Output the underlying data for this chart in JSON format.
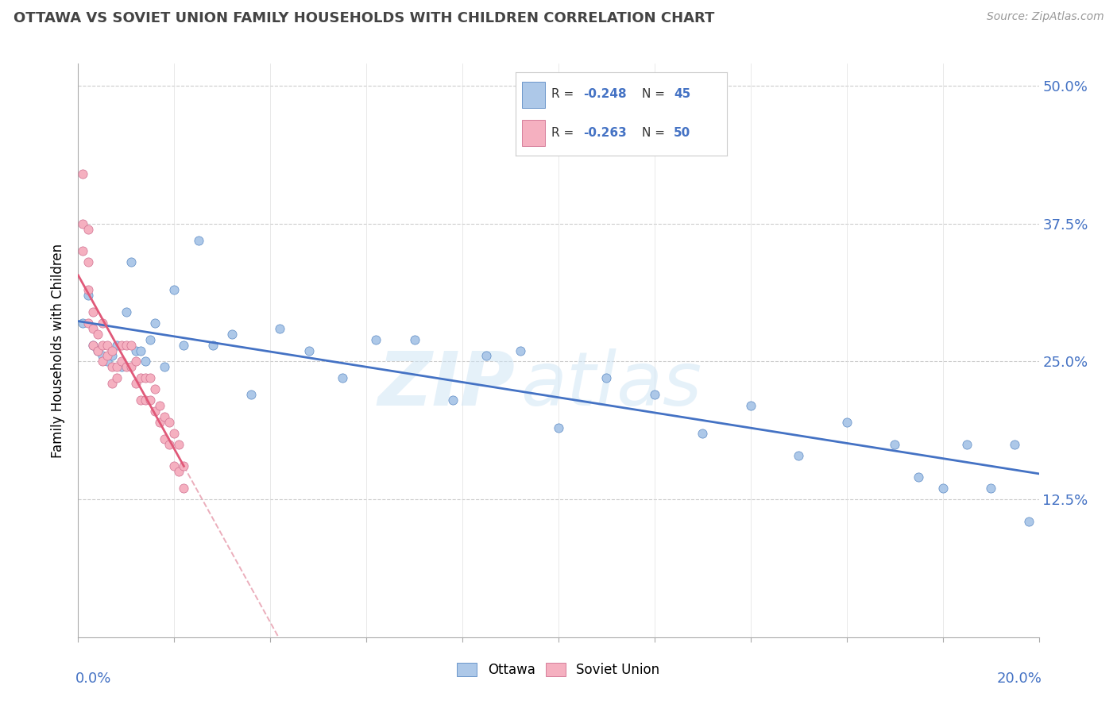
{
  "title": "OTTAWA VS SOVIET UNION FAMILY HOUSEHOLDS WITH CHILDREN CORRELATION CHART",
  "source": "Source: ZipAtlas.com",
  "ylabel": "Family Households with Children",
  "r_ottawa": -0.248,
  "n_ottawa": 45,
  "r_soviet": -0.263,
  "n_soviet": 50,
  "ottawa_dot_color": "#adc8e8",
  "ottawa_dot_edge": "#5b8ac4",
  "soviet_dot_color": "#f5b0c0",
  "soviet_dot_edge": "#d07090",
  "ottawa_line_color": "#4472c4",
  "soviet_line_color": "#e05878",
  "soviet_dash_color": "#e8a0b0",
  "grid_color": "#cccccc",
  "axis_label_color": "#4472c4",
  "title_color": "#444444",
  "source_color": "#999999",
  "background": "#ffffff",
  "xlim": [
    0.0,
    0.2
  ],
  "ylim": [
    0.0,
    0.52
  ],
  "yticks": [
    0.0,
    0.125,
    0.25,
    0.375,
    0.5
  ],
  "ytick_labels": [
    "",
    "12.5%",
    "25.0%",
    "37.5%",
    "50.0%"
  ],
  "ottawa_x": [
    0.001,
    0.002,
    0.003,
    0.004,
    0.005,
    0.006,
    0.007,
    0.008,
    0.009,
    0.01,
    0.011,
    0.012,
    0.013,
    0.014,
    0.015,
    0.016,
    0.018,
    0.02,
    0.022,
    0.025,
    0.028,
    0.032,
    0.036,
    0.042,
    0.048,
    0.055,
    0.062,
    0.07,
    0.078,
    0.085,
    0.092,
    0.1,
    0.11,
    0.12,
    0.13,
    0.14,
    0.15,
    0.16,
    0.17,
    0.175,
    0.18,
    0.185,
    0.19,
    0.195,
    0.198
  ],
  "ottawa_y": [
    0.285,
    0.31,
    0.265,
    0.26,
    0.255,
    0.25,
    0.255,
    0.265,
    0.245,
    0.295,
    0.34,
    0.26,
    0.26,
    0.25,
    0.27,
    0.285,
    0.245,
    0.315,
    0.265,
    0.36,
    0.265,
    0.275,
    0.22,
    0.28,
    0.26,
    0.235,
    0.27,
    0.27,
    0.215,
    0.255,
    0.26,
    0.19,
    0.235,
    0.22,
    0.185,
    0.21,
    0.165,
    0.195,
    0.175,
    0.145,
    0.135,
    0.175,
    0.135,
    0.175,
    0.105
  ],
  "soviet_x": [
    0.001,
    0.001,
    0.001,
    0.002,
    0.002,
    0.002,
    0.002,
    0.003,
    0.003,
    0.003,
    0.004,
    0.004,
    0.005,
    0.005,
    0.005,
    0.006,
    0.006,
    0.007,
    0.007,
    0.007,
    0.008,
    0.008,
    0.009,
    0.009,
    0.01,
    0.01,
    0.011,
    0.011,
    0.012,
    0.012,
    0.013,
    0.013,
    0.014,
    0.014,
    0.015,
    0.015,
    0.016,
    0.016,
    0.017,
    0.017,
    0.018,
    0.018,
    0.019,
    0.019,
    0.02,
    0.02,
    0.021,
    0.021,
    0.022,
    0.022
  ],
  "soviet_y": [
    0.42,
    0.375,
    0.35,
    0.37,
    0.34,
    0.315,
    0.285,
    0.295,
    0.28,
    0.265,
    0.275,
    0.26,
    0.285,
    0.265,
    0.25,
    0.265,
    0.255,
    0.26,
    0.245,
    0.23,
    0.245,
    0.235,
    0.265,
    0.25,
    0.265,
    0.245,
    0.265,
    0.245,
    0.25,
    0.23,
    0.235,
    0.215,
    0.235,
    0.215,
    0.235,
    0.215,
    0.225,
    0.205,
    0.21,
    0.195,
    0.2,
    0.18,
    0.195,
    0.175,
    0.185,
    0.155,
    0.175,
    0.15,
    0.155,
    0.135
  ]
}
